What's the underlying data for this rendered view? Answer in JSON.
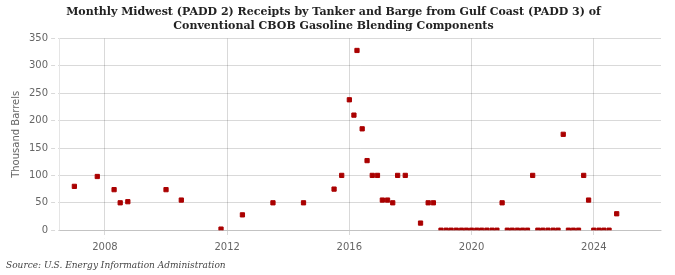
{
  "chart_data": {
    "type": "scatter",
    "title": "Monthly Midwest (PADD 2) Receipts by Tanker and Barge from Gulf Coast (PADD 3) of\nConventional CBOB Gasoline Blending Components",
    "ylabel": "Thousand Barrels",
    "source": "Source: U.S. Energy Information Administration",
    "color": "#aa0000",
    "marker": "square",
    "grid": true,
    "xlim": [
      2006.5,
      2026.2
    ],
    "xticks": [
      2008,
      2012,
      2016,
      2020,
      2024
    ],
    "ylim": [
      0,
      350
    ],
    "yticks": [
      0,
      50,
      100,
      150,
      200,
      250,
      300,
      350
    ],
    "x": [
      2007.0,
      2007.75,
      2008.3,
      2008.5,
      2008.75,
      2010.0,
      2010.5,
      2011.8,
      2012.5,
      2013.5,
      2014.5,
      2015.5,
      2015.75,
      2016.0,
      2016.15,
      2016.25,
      2016.42,
      2016.58,
      2016.75,
      2016.92,
      2017.08,
      2017.25,
      2017.42,
      2017.58,
      2017.83,
      2018.33,
      2018.58,
      2018.75,
      2019.0,
      2019.17,
      2019.33,
      2019.5,
      2019.67,
      2019.83,
      2020.0,
      2020.17,
      2020.33,
      2020.5,
      2020.67,
      2020.83,
      2021.0,
      2021.17,
      2021.33,
      2021.5,
      2021.67,
      2021.83,
      2022.0,
      2022.17,
      2022.33,
      2022.5,
      2022.67,
      2022.83,
      2023.0,
      2023.17,
      2023.33,
      2023.5,
      2023.67,
      2023.83,
      2024.0,
      2024.17,
      2024.33,
      2024.5,
      2024.75
    ],
    "values": [
      80,
      98,
      74,
      50,
      52,
      74,
      55,
      2,
      28,
      50,
      50,
      75,
      100,
      238,
      210,
      328,
      185,
      127,
      100,
      100,
      55,
      55,
      50,
      100,
      100,
      13,
      50,
      50,
      0,
      0,
      0,
      0,
      0,
      0,
      0,
      0,
      0,
      0,
      0,
      0,
      50,
      0,
      0,
      0,
      0,
      0,
      100,
      0,
      0,
      0,
      0,
      0,
      175,
      0,
      0,
      0,
      100,
      55,
      0,
      0,
      0,
      0,
      30
    ]
  }
}
